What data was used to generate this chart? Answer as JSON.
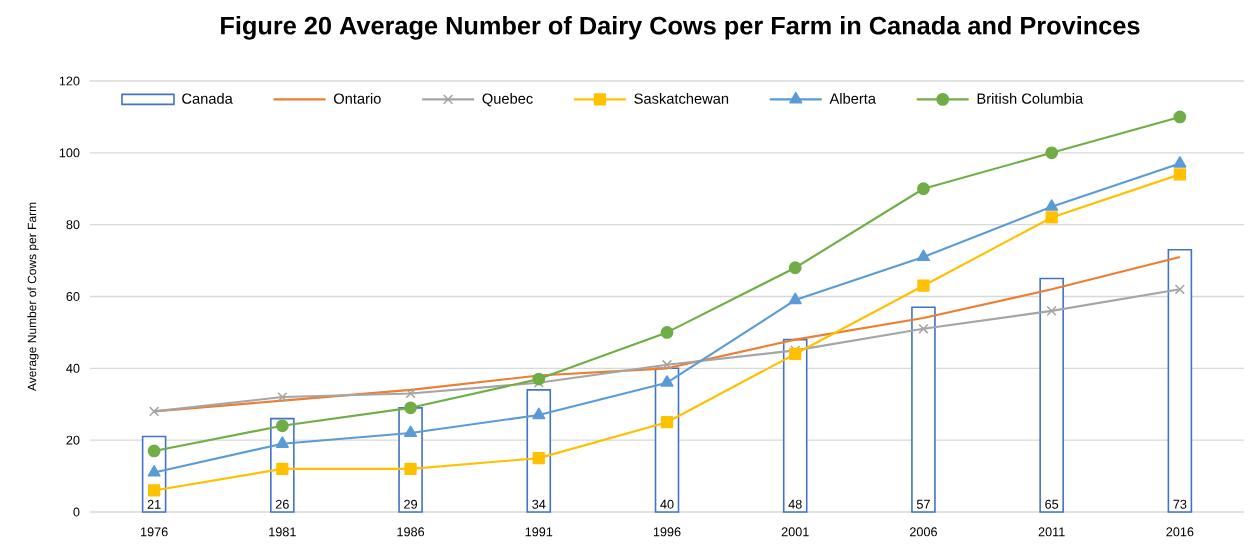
{
  "chart_data": {
    "type": "bar",
    "title": "Figure 20 Average Number of Dairy Cows per Farm in Canada and Provinces",
    "ylabel": "Average Number of Cows per Farm",
    "categories": [
      "1976",
      "1981",
      "1986",
      "1991",
      "1996",
      "2001",
      "2006",
      "2011",
      "2016"
    ],
    "series": [
      {
        "name": "Canada",
        "color": "#4472c4",
        "values": [
          21,
          26,
          29,
          34,
          40,
          48,
          57,
          65,
          73
        ],
        "value_labels": [
          "21",
          "26",
          "29",
          "34",
          "40",
          "48",
          "57",
          "65",
          "73"
        ]
      },
      {
        "name": "Ontario",
        "type": "line",
        "color": "#ed7d31",
        "marker": "none",
        "values": [
          28,
          31,
          34,
          38,
          40,
          48,
          54,
          62,
          71
        ]
      },
      {
        "name": "Quebec",
        "type": "line",
        "color": "#a5a5a5",
        "marker": "cross",
        "values": [
          28,
          32,
          33,
          36,
          41,
          45,
          51,
          56,
          62
        ]
      },
      {
        "name": "Saskatchewan",
        "type": "line",
        "color": "#ffc000",
        "marker": "square",
        "values": [
          6,
          12,
          12,
          15,
          25,
          44,
          63,
          82,
          94
        ]
      },
      {
        "name": "Alberta",
        "type": "line",
        "color": "#5b9bd5",
        "marker": "triangle",
        "values": [
          11,
          19,
          22,
          27,
          36,
          59,
          71,
          85,
          97
        ]
      },
      {
        "name": "British Columbia",
        "type": "line",
        "color": "#70ad47",
        "marker": "circle",
        "values": [
          17,
          24,
          29,
          37,
          50,
          68,
          90,
          100,
          110
        ]
      }
    ],
    "ylim": [
      0,
      120
    ],
    "yticks": [
      0,
      20,
      40,
      60,
      80,
      100,
      120
    ],
    "grid": "y",
    "legend": "top"
  }
}
